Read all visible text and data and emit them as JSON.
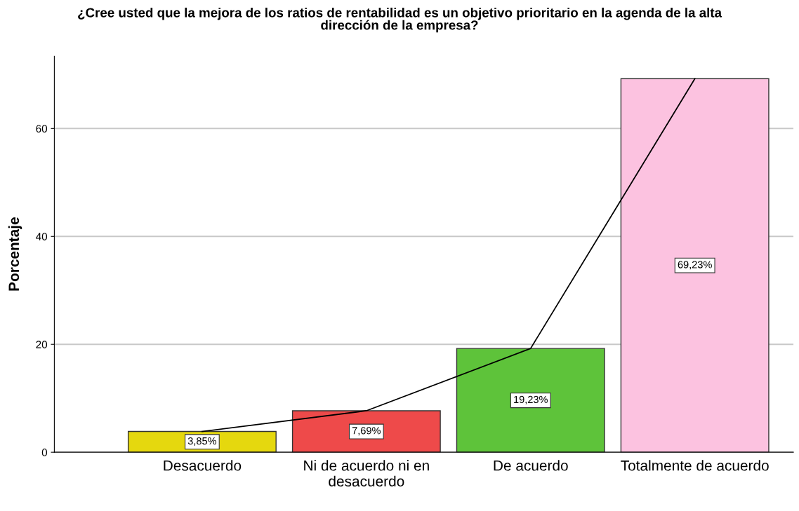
{
  "chart_data": {
    "type": "bar",
    "title": "¿Cree usted que la mejora de los ratios de rentabilidad es un objetivo prioritario en la agenda de la alta\ndirección de la empresa?",
    "ylabel": "Porcentaje",
    "categories": [
      "Desacuerdo",
      "Ni de acuerdo ni en\ndesacuerdo",
      "De acuerdo",
      "Totalmente de acuerdo"
    ],
    "series": [
      {
        "colors": [
          "#e5d80e",
          "#ee4a4a",
          "#5ec33a",
          "#fcc2e0"
        ],
        "values": [
          3.85,
          7.69,
          19.23,
          69.23
        ],
        "value_labels": [
          "3,85%",
          "7,69%",
          "19,23%",
          "69,23%"
        ]
      },
      {
        "type": "line",
        "color": "#000000",
        "values": [
          3.85,
          7.69,
          19.23,
          69.23
        ]
      }
    ],
    "ylim": [
      0,
      73.4
    ],
    "yticks": [
      0,
      20,
      40,
      60
    ],
    "grid": "y",
    "marker": "none",
    "line_style": "solid"
  }
}
